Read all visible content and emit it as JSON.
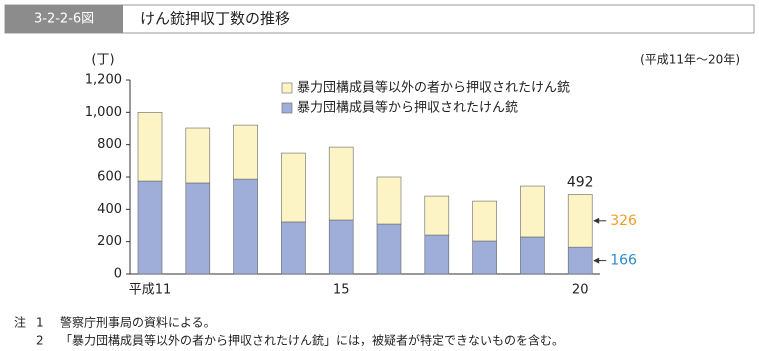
{
  "chart_data": {
    "type": "stacked-bar",
    "figure_number": "3-2-2-6図",
    "title": "けん銃押収丁数の推移",
    "unit_label": "(丁)",
    "subtitle": "(平成11年～20年)",
    "categories": [
      "平成11",
      null,
      null,
      null,
      "15",
      null,
      null,
      null,
      null,
      "20"
    ],
    "series": [
      {
        "name": "暴力団構成員等から押収されたけん銃",
        "color": "#9eaed8",
        "values": [
          575,
          563,
          587,
          322,
          334,
          309,
          241,
          204,
          229,
          166
        ],
        "value_labels": [
          null,
          null,
          null,
          null,
          null,
          null,
          null,
          null,
          null,
          "166"
        ],
        "label_color": "#2b8ccc"
      },
      {
        "name": "暴力団構成員等以外の者から押収されたけん銃",
        "color": "#fcf4c4",
        "values": [
          425,
          340,
          334,
          426,
          451,
          291,
          241,
          247,
          315,
          326
        ],
        "value_labels": [
          null,
          null,
          null,
          null,
          null,
          null,
          null,
          null,
          null,
          "326"
        ],
        "label_color": "#f29c2a"
      }
    ],
    "annotations": [
      {
        "text": "492"
      }
    ],
    "ylim": [
      0,
      1200
    ],
    "yticks": [
      0,
      200,
      400,
      600,
      800,
      {
        "value": 1000,
        "label": "1,000"
      },
      {
        "value": 1200,
        "label": "1,200"
      }
    ],
    "notes_prefix": "注",
    "notes": [
      {
        "num": "1",
        "text": "警察庁刑事局の資料による。"
      },
      {
        "num": "2",
        "text": "「暴力団構成員等以外の者から押収されたけん銃」には，被疑者が特定できないものを含む。"
      }
    ]
  }
}
